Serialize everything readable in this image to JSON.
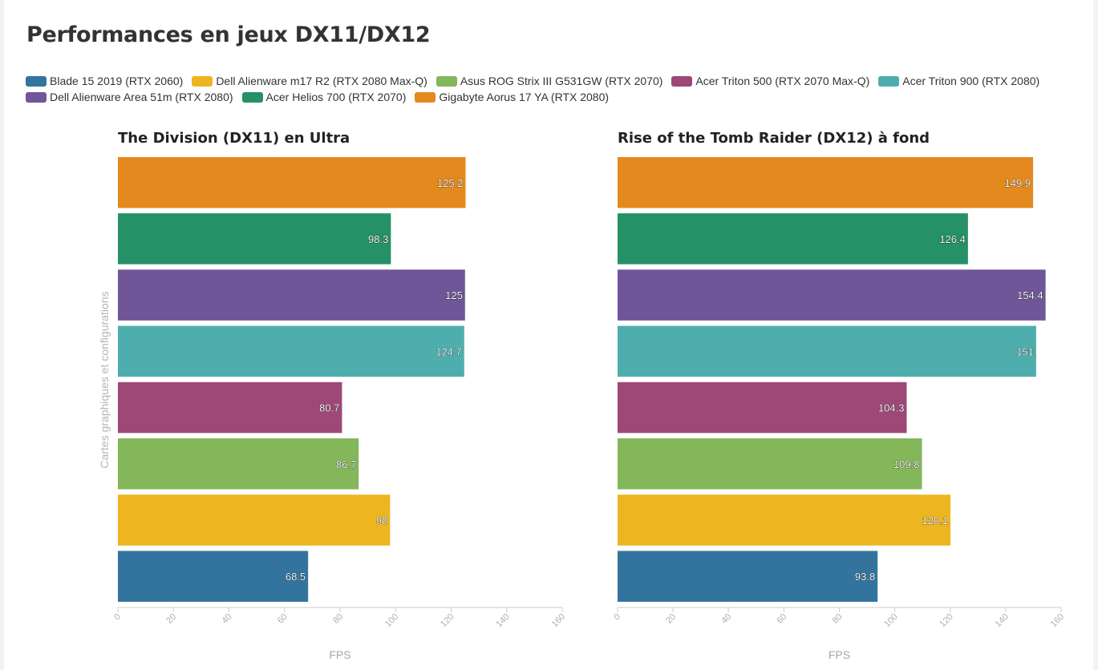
{
  "title": "Performances en jeux DX11/DX12",
  "y_axis_label": "Cartes graphiques et configurations",
  "legend": [
    {
      "label": "Blade 15 2019 (RTX 2060)",
      "color": "#33749e"
    },
    {
      "label": "Dell Alienware m17 R2 (RTX 2080 Max-Q)",
      "color": "#edb520"
    },
    {
      "label": "Asus ROG Strix III G531GW (RTX 2070)",
      "color": "#84b65a"
    },
    {
      "label": "Acer Triton 500 (RTX 2070 Max-Q)",
      "color": "#9e4878"
    },
    {
      "label": "Acer Triton 900 (RTX 2080)",
      "color": "#4eaeae"
    },
    {
      "label": "Dell Alienware Area 51m (RTX 2080)",
      "color": "#6f5698"
    },
    {
      "label": "Acer Helios 700 (RTX 2070)",
      "color": "#269066"
    },
    {
      "label": "Gigabyte Aorus 17 YA (RTX 2080)",
      "color": "#e4891e"
    }
  ],
  "chart_data": [
    {
      "type": "bar",
      "orientation": "horizontal",
      "title": "The Division (DX11) en Ultra",
      "xlabel": "FPS",
      "ylabel": "Cartes graphiques et configurations",
      "xlim": [
        0,
        160
      ],
      "xticks": [
        0,
        20,
        40,
        60,
        80,
        100,
        120,
        140,
        160
      ],
      "categories": [
        "Gigabyte Aorus 17 YA (RTX 2080)",
        "Acer Helios 700 (RTX 2070)",
        "Dell Alienware Area 51m (RTX 2080)",
        "Acer Triton 900 (RTX 2080)",
        "Acer Triton 500 (RTX 2070 Max-Q)",
        "Asus ROG Strix III G531GW (RTX 2070)",
        "Dell Alienware m17 R2 (RTX 2080 Max-Q)",
        "Blade 15 2019 (RTX 2060)"
      ],
      "values": [
        125.2,
        98.3,
        125,
        124.7,
        80.7,
        86.7,
        98,
        68.5
      ],
      "value_labels": [
        "125.2",
        "98.3",
        "125",
        "124.7",
        "80.7",
        "86.7",
        "98",
        "68.5"
      ],
      "colors": [
        "#e4891e",
        "#269066",
        "#6f5698",
        "#4eaeae",
        "#9e4878",
        "#84b65a",
        "#edb520",
        "#33749e"
      ]
    },
    {
      "type": "bar",
      "orientation": "horizontal",
      "title": "Rise of the Tomb Raider (DX12) à fond",
      "xlabel": "FPS",
      "ylabel": "",
      "xlim": [
        0,
        160
      ],
      "xticks": [
        0,
        20,
        40,
        60,
        80,
        100,
        120,
        140,
        160
      ],
      "categories": [
        "Gigabyte Aorus 17 YA (RTX 2080)",
        "Acer Helios 700 (RTX 2070)",
        "Dell Alienware Area 51m (RTX 2080)",
        "Acer Triton 900 (RTX 2080)",
        "Acer Triton 500 (RTX 2070 Max-Q)",
        "Asus ROG Strix III G531GW (RTX 2070)",
        "Dell Alienware m17 R2 (RTX 2080 Max-Q)",
        "Blade 15 2019 (RTX 2060)"
      ],
      "values": [
        149.9,
        126.4,
        154.4,
        151,
        104.3,
        109.8,
        120.1,
        93.8
      ],
      "value_labels": [
        "149.9",
        "126.4",
        "154.4",
        "151",
        "104.3",
        "109.8",
        "120.1",
        "93.8"
      ],
      "colors": [
        "#e4891e",
        "#269066",
        "#6f5698",
        "#4eaeae",
        "#9e4878",
        "#84b65a",
        "#edb520",
        "#33749e"
      ]
    }
  ]
}
